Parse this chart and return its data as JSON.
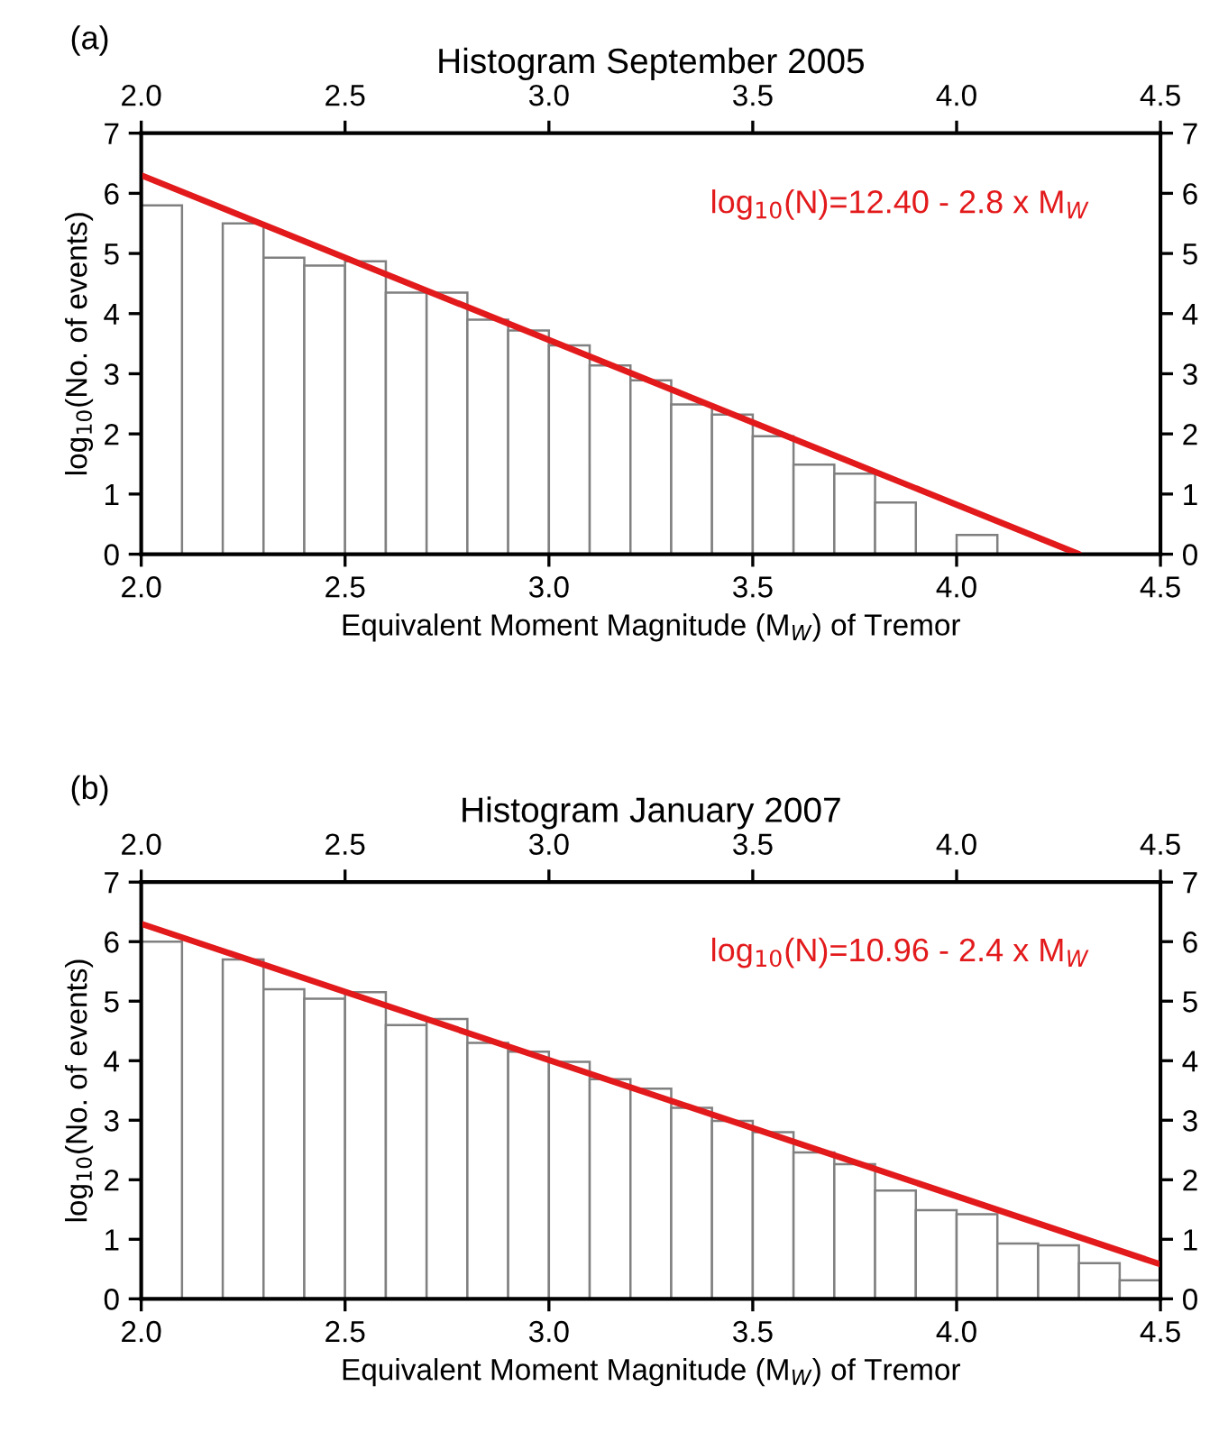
{
  "chart_data": [
    {
      "type": "histogram",
      "title": "Histogram September 2005",
      "xlabel": "Equivalent Moment Magnitude (M$_{W}$) of Tremor",
      "ylabel": "log$_{10}$(No. of events)",
      "bins": [
        2.0,
        2.1,
        2.2,
        2.3,
        2.4,
        2.5,
        2.6,
        2.7,
        2.8,
        2.9,
        3.0,
        3.1,
        3.2,
        3.3,
        3.4,
        3.5,
        3.6,
        3.7,
        3.8,
        3.9,
        4.0,
        4.1
      ],
      "values": [
        5.8,
        0,
        5.5,
        4.93,
        4.8,
        4.87,
        4.35,
        4.35,
        3.9,
        3.72,
        3.47,
        3.14,
        2.89,
        2.49,
        2.32,
        1.96,
        1.49,
        1.34,
        0.86,
        0,
        0.32
      ],
      "color": "#808080",
      "series": [
        {
          "type": "line",
          "color": "#e31a1c",
          "x": [
            2.0,
            4.3
          ],
          "values": [
            6.3,
            0
          ]
        }
      ],
      "annotations": [
        "(a)",
        "log$_{10}$(N)=12.40 - 2.8 x M$_{W}$"
      ],
      "xlim": [
        2.0,
        4.5
      ],
      "xticks": [
        {
          "value": 2.0,
          "label": "2.0"
        },
        2.5,
        {
          "value": 3.0,
          "label": "3.0"
        },
        3.5,
        {
          "value": 4.0,
          "label": "4.0"
        },
        4.5
      ],
      "x2lim": [
        2.0,
        4.5
      ],
      "x2ticks": [
        {
          "value": 2.0,
          "label": "2.0"
        },
        2.5,
        {
          "value": 3.0,
          "label": "3.0"
        },
        3.5,
        {
          "value": 4.0,
          "label": "4.0"
        },
        4.5
      ],
      "ylim": [
        0,
        7
      ],
      "yticks": [
        0,
        1,
        2,
        3,
        4,
        5,
        6,
        7
      ],
      "y2lim": [
        0,
        7
      ],
      "y2ticks": [
        0,
        1,
        2,
        3,
        4,
        5,
        6,
        7
      ]
    },
    {
      "type": "histogram",
      "title": "Histogram January 2007",
      "xlabel": "Equivalent Moment Magnitude (M$_{W}$) of Tremor",
      "ylabel": "log$_{10}$(No. of events)",
      "bins": [
        2.0,
        2.1,
        2.2,
        2.3,
        2.4,
        2.5,
        2.6,
        2.7,
        2.8,
        2.9,
        3.0,
        3.1,
        3.2,
        3.3,
        3.4,
        3.5,
        3.6,
        3.7,
        3.8,
        3.9,
        4.0,
        4.1,
        4.2,
        4.3,
        4.4,
        4.5
      ],
      "values": [
        6.0,
        0,
        5.7,
        5.2,
        5.04,
        5.15,
        4.6,
        4.7,
        4.3,
        4.15,
        3.98,
        3.69,
        3.53,
        3.21,
        2.99,
        2.8,
        2.46,
        2.26,
        1.82,
        1.49,
        1.42,
        0.93,
        0.9,
        0.6,
        0.31
      ],
      "color": "#808080",
      "series": [
        {
          "type": "line",
          "color": "#e31a1c",
          "x": [
            2.0,
            4.5
          ],
          "values": [
            6.3,
            0.58
          ]
        }
      ],
      "annotations": [
        "(b)",
        "log$_{10}$(N)=10.96 - 2.4 x M$_{W}$"
      ],
      "xlim": [
        2.0,
        4.5
      ],
      "xticks": [
        {
          "value": 2.0,
          "label": "2.0"
        },
        2.5,
        {
          "value": 3.0,
          "label": "3.0"
        },
        3.5,
        {
          "value": 4.0,
          "label": "4.0"
        },
        4.5
      ],
      "x2lim": [
        2.0,
        4.5
      ],
      "x2ticks": [
        {
          "value": 2.0,
          "label": "2.0"
        },
        2.5,
        {
          "value": 3.0,
          "label": "3.0"
        },
        3.5,
        {
          "value": 4.0,
          "label": "4.0"
        },
        4.5
      ],
      "ylim": [
        0,
        7
      ],
      "yticks": [
        0,
        1,
        2,
        3,
        4,
        5,
        6,
        7
      ],
      "y2lim": [
        0,
        7
      ],
      "y2ticks": [
        0,
        1,
        2,
        3,
        4,
        5,
        6,
        7
      ]
    }
  ]
}
